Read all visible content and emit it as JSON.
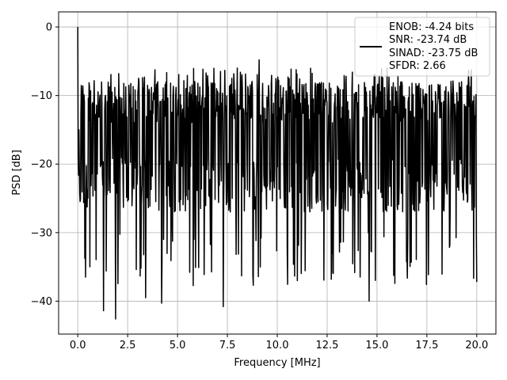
{
  "chart_data": {
    "type": "line",
    "title": "",
    "xlabel": "Frequency [MHz]",
    "ylabel": "PSD [dB]",
    "xlim": [
      -0.96,
      20.96
    ],
    "ylim": [
      -44.8,
      2.2
    ],
    "xticks": [
      0.0,
      2.5,
      5.0,
      7.5,
      10.0,
      12.5,
      15.0,
      17.5,
      20.0
    ],
    "xtick_labels": [
      "0.0",
      "2.5",
      "5.0",
      "7.5",
      "10.0",
      "12.5",
      "15.0",
      "17.5",
      "20.0"
    ],
    "yticks": [
      0,
      -10,
      -20,
      -30,
      -40
    ],
    "ytick_labels": [
      "0",
      "−10",
      "−20",
      "−30",
      "−40"
    ],
    "grid": true,
    "legend_position": "top-right",
    "legend_lines": [
      "ENOB: -4.24 bits",
      "SNR: -23.74 dB",
      "SINAD: -23.75 dB",
      "SFDR: 2.66"
    ],
    "series_color": "#000000",
    "series": [
      {
        "x_start": 0.0,
        "x_end": 20.0,
        "points_count": 1024,
        "peak": {
          "x": 0.0,
          "y": 0.0
        },
        "sampled_values": [
          {
            "x": 0.0,
            "y": 0.0
          },
          {
            "x": 0.05,
            "y": -15
          },
          {
            "x": 0.4,
            "y": -36.5
          },
          {
            "x": 0.6,
            "y": -35
          },
          {
            "x": 1.3,
            "y": -41.4
          },
          {
            "x": 1.9,
            "y": -42.6
          },
          {
            "x": 2.2,
            "y": -10.4
          },
          {
            "x": 3.4,
            "y": -39.5
          },
          {
            "x": 4.0,
            "y": -8.0
          },
          {
            "x": 4.2,
            "y": -40.3
          },
          {
            "x": 7.3,
            "y": -40.8
          },
          {
            "x": 8.0,
            "y": -6.0
          },
          {
            "x": 9.1,
            "y": -4.8
          },
          {
            "x": 11.0,
            "y": -37.0
          },
          {
            "x": 14.6,
            "y": -40.0
          },
          {
            "x": 15.5,
            "y": -6.0
          },
          {
            "x": 20.0,
            "y": -37.2
          }
        ],
        "typical_upper": -8,
        "typical_lower": -27
      }
    ]
  }
}
